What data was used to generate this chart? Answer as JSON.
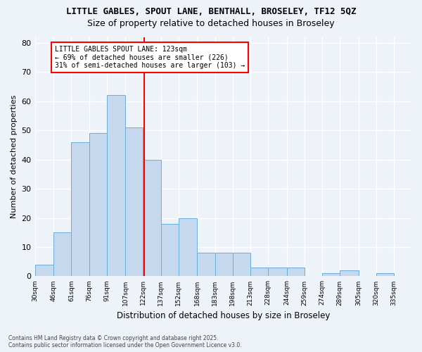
{
  "title": "LITTLE GABLES, SPOUT LANE, BENTHALL, BROSELEY, TF12 5QZ",
  "subtitle": "Size of property relative to detached houses in Broseley",
  "xlabel": "Distribution of detached houses by size in Broseley",
  "ylabel": "Number of detached properties",
  "footer_line1": "Contains HM Land Registry data © Crown copyright and database right 2025.",
  "footer_line2": "Contains public sector information licensed under the Open Government Licence v3.0.",
  "annotation_line1": "LITTLE GABLES SPOUT LANE: 123sqm",
  "annotation_line2": "← 69% of detached houses are smaller (226)",
  "annotation_line3": "31% of semi-detached houses are larger (103) →",
  "bar_values": [
    4,
    15,
    46,
    49,
    62,
    51,
    40,
    18,
    20,
    8,
    8,
    8,
    3,
    3,
    3,
    0,
    1,
    2,
    0,
    1,
    0
  ],
  "bin_labels": [
    "30sqm",
    "46sqm",
    "61sqm",
    "76sqm",
    "91sqm",
    "107sqm",
    "122sqm",
    "137sqm",
    "152sqm",
    "168sqm",
    "183sqm",
    "198sqm",
    "213sqm",
    "228sqm",
    "244sqm",
    "259sqm",
    "274sqm",
    "289sqm",
    "305sqm",
    "320sqm",
    "335sqm"
  ],
  "bin_edges": [
    30,
    46,
    61,
    76,
    91,
    107,
    122,
    137,
    152,
    168,
    183,
    198,
    213,
    228,
    244,
    259,
    274,
    289,
    305,
    320,
    335,
    350
  ],
  "property_size": 123,
  "bar_color": "#c5d8ed",
  "bar_edge_color": "#6aaed6",
  "vline_color": "red",
  "background_color": "#eef2f9",
  "grid_color": "#ffffff",
  "ylim": [
    0,
    82
  ],
  "yticks": [
    0,
    10,
    20,
    30,
    40,
    50,
    60,
    70,
    80
  ]
}
